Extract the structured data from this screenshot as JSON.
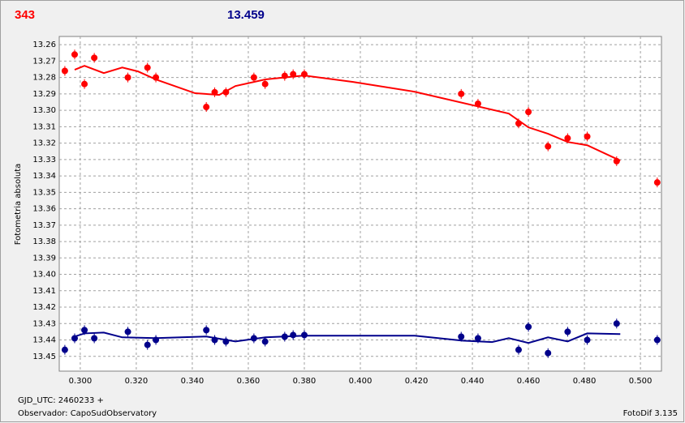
{
  "header": {
    "count": "343",
    "value": "13.459"
  },
  "footer": {
    "gjd": "GJD_UTC: 2460233 +",
    "observer": "Observador: CapoSudObservatory",
    "version": "FotoDif 3.135"
  },
  "chart_data": {
    "type": "scatter",
    "ylabel": "Fotometria absoluta",
    "xlim": [
      0.2925,
      0.5075
    ],
    "ylim": [
      13.459,
      13.255
    ],
    "grid": true,
    "xticks": [
      {
        "value": 0.3,
        "label": "0.300"
      },
      {
        "value": 0.32,
        "label": "0.320"
      },
      {
        "value": 0.34,
        "label": "0.340"
      },
      {
        "value": 0.36,
        "label": "0.360"
      },
      {
        "value": 0.38,
        "label": "0.380"
      },
      {
        "value": 0.4,
        "label": "0.400"
      },
      {
        "value": 0.42,
        "label": "0.420"
      },
      {
        "value": 0.44,
        "label": "0.440"
      },
      {
        "value": 0.46,
        "label": "0.460"
      },
      {
        "value": 0.48,
        "label": "0.480"
      },
      {
        "value": 0.5,
        "label": "0.500"
      }
    ],
    "yticks": [
      13.26,
      13.27,
      13.28,
      13.29,
      {
        "value": 13.3,
        "label": "13.30"
      },
      13.31,
      13.32,
      13.33,
      13.34,
      13.35,
      13.36,
      13.37,
      13.38,
      13.39,
      {
        "value": 13.4,
        "label": "13.40"
      },
      13.41,
      13.42,
      13.43,
      13.44,
      13.45
    ],
    "series": [
      {
        "type": "scatter",
        "color": "#ff0000",
        "x": [
          0.2945,
          0.298,
          0.3015,
          0.305,
          0.317,
          0.324,
          0.327,
          0.345,
          0.348,
          0.352,
          0.362,
          0.366,
          0.373,
          0.376,
          0.38,
          0.436,
          0.442,
          0.4565,
          0.46,
          0.467,
          0.474,
          0.481,
          0.4915,
          0.506
        ],
        "values": [
          13.276,
          13.266,
          13.284,
          13.268,
          13.28,
          13.274,
          13.28,
          13.298,
          13.289,
          13.289,
          13.28,
          13.284,
          13.279,
          13.278,
          13.278,
          13.29,
          13.296,
          13.308,
          13.301,
          13.322,
          13.317,
          13.316,
          13.331,
          13.344
        ]
      },
      {
        "type": "line",
        "color": "#ff0000",
        "x": [
          0.298,
          0.3015,
          0.3084,
          0.315,
          0.3206,
          0.327,
          0.341,
          0.3496,
          0.3554,
          0.3661,
          0.38,
          0.3974,
          0.4194,
          0.453,
          0.46,
          0.467,
          0.474,
          0.481,
          0.4928
        ],
        "values": [
          13.2753,
          13.2729,
          13.2773,
          13.2739,
          13.2763,
          13.2812,
          13.2896,
          13.2906,
          13.2852,
          13.2812,
          13.2788,
          13.2827,
          13.2887,
          13.302,
          13.3104,
          13.3143,
          13.3193,
          13.3213,
          13.3307
        ]
      },
      {
        "type": "scatter",
        "color": "#00008b",
        "x": [
          0.2945,
          0.298,
          0.3015,
          0.305,
          0.317,
          0.324,
          0.327,
          0.345,
          0.348,
          0.352,
          0.362,
          0.366,
          0.373,
          0.376,
          0.38,
          0.436,
          0.442,
          0.4565,
          0.46,
          0.467,
          0.474,
          0.481,
          0.4915,
          0.506
        ],
        "values": [
          13.446,
          13.439,
          13.434,
          13.439,
          13.435,
          13.443,
          13.44,
          13.434,
          13.44,
          13.441,
          13.439,
          13.441,
          13.438,
          13.437,
          13.437,
          13.438,
          13.439,
          13.446,
          13.432,
          13.448,
          13.435,
          13.44,
          13.43,
          13.44
        ]
      },
      {
        "type": "line",
        "color": "#00008b",
        "x": [
          0.298,
          0.3015,
          0.3084,
          0.315,
          0.327,
          0.345,
          0.3554,
          0.3661,
          0.38,
          0.4194,
          0.4365,
          0.447,
          0.453,
          0.46,
          0.467,
          0.474,
          0.481,
          0.4928
        ],
        "values": [
          13.4379,
          13.436,
          13.4355,
          13.4384,
          13.4389,
          13.4379,
          13.4409,
          13.4384,
          13.4374,
          13.4374,
          13.4404,
          13.4413,
          13.4389,
          13.4418,
          13.4384,
          13.4409,
          13.436,
          13.4364
        ]
      }
    ]
  }
}
